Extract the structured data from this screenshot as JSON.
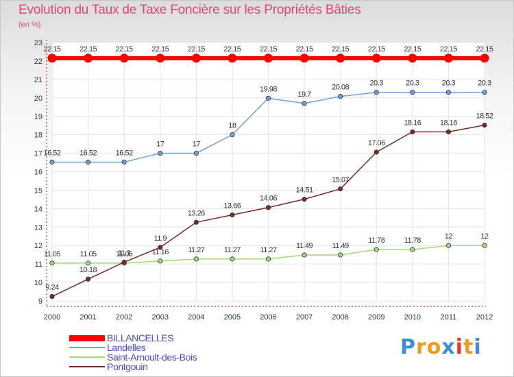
{
  "title": "Evolution du Taux de Taxe Foncière sur les Propriétés Bâties",
  "unit_label": "(en %)",
  "logo_text": "Proxiti",
  "chart_data": {
    "type": "line",
    "title": "Evolution du Taux de Taxe Foncière sur les Propriétés Bâties",
    "ylabel": "(en %)",
    "xlabel": "",
    "categories": [
      "2000",
      "2001",
      "2002",
      "2003",
      "2004",
      "2005",
      "2006",
      "2007",
      "2008",
      "2009",
      "2010",
      "2011",
      "2012"
    ],
    "ylim": [
      9,
      23
    ],
    "yticks": [
      9,
      10,
      11,
      12,
      13,
      14,
      15,
      16,
      17,
      18,
      19,
      20,
      21,
      22,
      23
    ],
    "grid": true,
    "legend_position": "bottom-left",
    "series": [
      {
        "name": "BILLANCELLES",
        "color": "#ff0000",
        "values": [
          22.15,
          22.15,
          22.15,
          22.15,
          22.15,
          22.15,
          22.15,
          22.15,
          22.15,
          22.15,
          22.15,
          22.15,
          22.15
        ],
        "labels": [
          "22.15",
          "22.15",
          "22.15",
          "22.15",
          "22.15",
          "22.15",
          "22.15",
          "22.15",
          "22.15",
          "22.15",
          "22.15",
          "22.15",
          "22.15"
        ]
      },
      {
        "name": "Landelles",
        "color": "#6fa1d6",
        "values": [
          16.52,
          16.52,
          16.52,
          17,
          17,
          18,
          19.98,
          19.7,
          20.08,
          20.3,
          20.3,
          20.3,
          20.3
        ],
        "labels": [
          "16.52",
          "16.52",
          "16.52",
          "17",
          "17",
          "18",
          "19.98",
          "19.7",
          "20.08",
          "20.3",
          "20.3",
          "20.3",
          "20.3"
        ]
      },
      {
        "name": "Saint-Arnoult-des-Bois",
        "color": "#a3d979",
        "values": [
          11.05,
          11.05,
          11.05,
          11.16,
          11.27,
          11.27,
          11.27,
          11.49,
          11.49,
          11.78,
          11.78,
          12,
          12
        ],
        "labels": [
          "11.05",
          "11.05",
          "11.05",
          "11.16",
          "11.27",
          "11.27",
          "11.27",
          "11.49",
          "11.49",
          "11.78",
          "11.78",
          "12",
          "12"
        ]
      },
      {
        "name": "Pontgouin",
        "color": "#7a2a2a",
        "values": [
          9.24,
          10.18,
          11.1,
          11.9,
          13.26,
          13.66,
          14.06,
          14.51,
          15.07,
          17.06,
          18.16,
          18.16,
          18.52
        ],
        "labels": [
          "9.24",
          "10.18",
          "11.1",
          "11.9",
          "13.26",
          "13.66",
          "14.06",
          "14.51",
          "15.07",
          "17.06",
          "18.16",
          "18.16",
          "18.52"
        ]
      }
    ]
  }
}
